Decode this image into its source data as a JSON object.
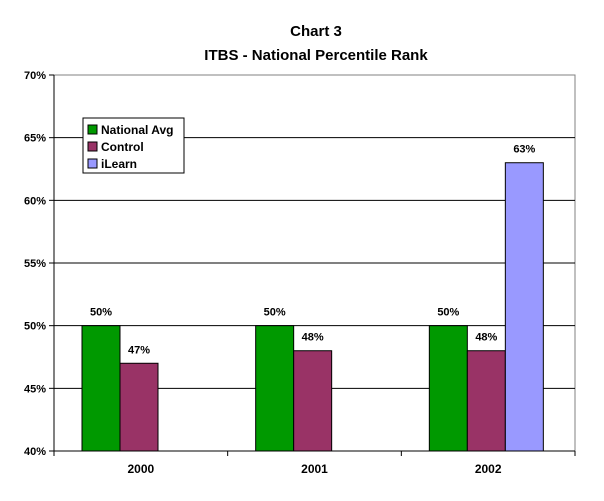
{
  "chart_data": {
    "type": "bar",
    "title": "Chart 3",
    "subtitle": "ITBS - National Percentile Rank",
    "categories": [
      "2000",
      "2001",
      "2002"
    ],
    "series": [
      {
        "name": "National Avg",
        "color": "#009900",
        "values": [
          50,
          50,
          50
        ],
        "labels": [
          "50%",
          "50%",
          "50%"
        ]
      },
      {
        "name": "Control",
        "color": "#993366",
        "values": [
          47,
          48,
          48
        ],
        "labels": [
          "47%",
          "48%",
          "48%"
        ]
      },
      {
        "name": "iLearn",
        "color": "#9999ff",
        "values": [
          null,
          null,
          63
        ],
        "labels": [
          null,
          null,
          "63%"
        ]
      }
    ],
    "ylim": [
      40,
      70
    ],
    "yticks": [
      40,
      45,
      50,
      55,
      60,
      65,
      70
    ],
    "ytick_labels": [
      "40%",
      "45%",
      "50%",
      "55%",
      "60%",
      "65%",
      "70%"
    ],
    "grid": true,
    "legend_position": "top-left"
  }
}
